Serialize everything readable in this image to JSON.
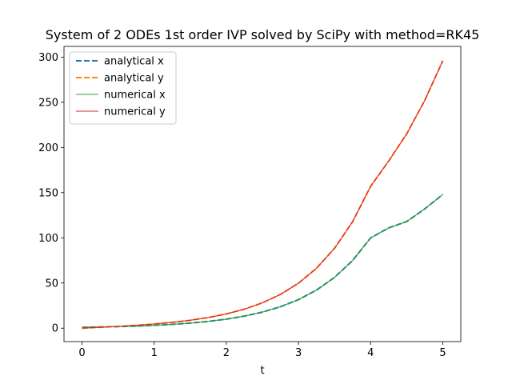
{
  "chart_data": {
    "type": "line",
    "title": "System of 2 ODEs 1st order IVP solved by SciPy with method=RK45",
    "xlabel": "t",
    "ylabel": "",
    "xlim": [
      -0.25,
      5.25
    ],
    "ylim": [
      -14.85,
      311.85
    ],
    "xticks": [
      0,
      1,
      2,
      3,
      4,
      5
    ],
    "yticks": [
      0,
      50,
      100,
      150,
      200,
      250,
      300
    ],
    "grid": false,
    "legend_position": "top-left",
    "x": [
      0,
      0.25,
      0.5,
      0.75,
      1,
      1.25,
      1.5,
      1.75,
      2,
      2.25,
      2.5,
      2.75,
      3,
      3.25,
      3.5,
      3.75,
      4,
      4.25,
      4.5,
      4.75,
      5
    ],
    "series": [
      {
        "name": "analytical x",
        "color": "#1f77b4",
        "style": "dashed",
        "values": [
          1.0,
          1.33,
          1.78,
          2.36,
          3.16,
          4.21,
          5.62,
          7.5,
          10.0,
          13.34,
          17.78,
          23.71,
          31.6,
          42.13,
          56.2,
          74.9,
          99.9,
          111.0,
          118.0,
          132.0,
          148.0
        ]
      },
      {
        "name": "analytical y",
        "color": "#ff7f0e",
        "style": "dashed",
        "values": [
          0.0,
          0.94,
          1.97,
          3.17,
          4.62,
          6.43,
          8.76,
          11.79,
          15.77,
          21.04,
          28.05,
          37.37,
          49.79,
          66.34,
          88.4,
          117.8,
          157.0,
          185.0,
          215.0,
          252.0,
          296.0
        ]
      },
      {
        "name": "numerical x",
        "color": "#2ca02c",
        "style": "solid",
        "values": [
          1.0,
          1.33,
          1.78,
          2.36,
          3.16,
          4.21,
          5.62,
          7.5,
          10.0,
          13.34,
          17.78,
          23.71,
          31.6,
          42.13,
          56.2,
          74.9,
          99.9,
          111.0,
          118.0,
          132.0,
          148.0
        ]
      },
      {
        "name": "numerical y",
        "color": "#d62728",
        "style": "solid",
        "values": [
          0.0,
          0.94,
          1.97,
          3.17,
          4.62,
          6.43,
          8.76,
          11.79,
          15.77,
          21.04,
          28.05,
          37.37,
          49.79,
          66.34,
          88.4,
          117.8,
          157.0,
          185.0,
          215.0,
          252.0,
          296.0
        ]
      }
    ]
  }
}
